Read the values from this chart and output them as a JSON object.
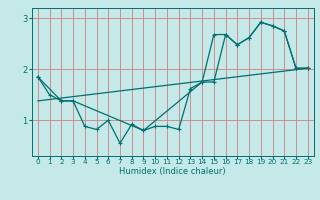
{
  "xlabel": "Humidex (Indice chaleur)",
  "bg_color": "#c5e8e8",
  "line_color": "#007070",
  "grid_color_v": "#d08080",
  "grid_color_h": "#d08080",
  "xlim": [
    -0.5,
    23.5
  ],
  "ylim": [
    0.3,
    3.2
  ],
  "yticks": [
    1,
    2,
    3
  ],
  "xticks": [
    0,
    1,
    2,
    3,
    4,
    5,
    6,
    7,
    8,
    9,
    10,
    11,
    12,
    13,
    14,
    15,
    16,
    17,
    18,
    19,
    20,
    21,
    22,
    23
  ],
  "series1": {
    "x": [
      0,
      1,
      2,
      3,
      4,
      5,
      6,
      7,
      8,
      9,
      10,
      11,
      12,
      13,
      14,
      15,
      16,
      17,
      18,
      19,
      20,
      21,
      22,
      23
    ],
    "y": [
      1.85,
      1.5,
      1.38,
      1.38,
      0.88,
      0.82,
      1.0,
      0.55,
      0.92,
      0.8,
      0.88,
      0.88,
      0.82,
      1.62,
      1.75,
      2.68,
      2.68,
      2.48,
      2.62,
      2.92,
      2.85,
      2.75,
      2.02,
      2.02
    ]
  },
  "series2": {
    "x": [
      0,
      2,
      3,
      9,
      14,
      15,
      16,
      17,
      18,
      19,
      20,
      21,
      22,
      23
    ],
    "y": [
      1.85,
      1.38,
      1.38,
      0.8,
      1.75,
      1.75,
      2.68,
      2.48,
      2.62,
      2.92,
      2.85,
      2.75,
      2.02,
      2.02
    ]
  },
  "series3": {
    "x": [
      0,
      23
    ],
    "y": [
      1.38,
      2.02
    ]
  },
  "marker": "+"
}
